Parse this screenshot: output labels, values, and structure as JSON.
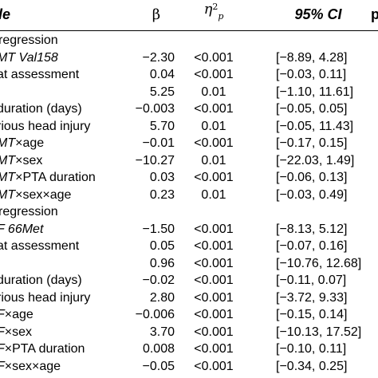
{
  "header": {
    "variable": "le",
    "beta": "β",
    "eta": "η",
    "eta_sup": "2",
    "eta_sub": "p",
    "ci": "95% CI",
    "p": "p"
  },
  "rows": [
    {
      "var": "regression",
      "section": true,
      "beta": "",
      "eta": "",
      "ci": ""
    },
    {
      "var_pre": "",
      "var_ital": "MT Val158",
      "var_post": "",
      "beta": "−2.30",
      "eta": "<0.001",
      "ci": "[−8.89, 4.28]"
    },
    {
      "var_pre": "at assessment",
      "var_ital": "",
      "var_post": "",
      "beta": "0.04",
      "eta": "<0.001",
      "ci": "[−0.03, 0.11]"
    },
    {
      "var_pre": "",
      "var_ital": "",
      "var_post": "",
      "beta": "5.25",
      "eta": "0.01",
      "ci": "[−1.10, 11.61]"
    },
    {
      "var_pre": "duration (days)",
      "var_ital": "",
      "var_post": "",
      "beta": "−0.003",
      "eta": "<0.001",
      "ci": "[−0.05, 0.05]"
    },
    {
      "var_pre": "rious head injury",
      "var_ital": "",
      "var_post": "",
      "beta": "5.70",
      "eta": "0.01",
      "ci": "[−0.05, 11.43]"
    },
    {
      "var_pre": "",
      "var_ital": "MT",
      "var_post": "×age",
      "beta": "−0.01",
      "eta": "<0.001",
      "ci": "[−0.17, 0.15]"
    },
    {
      "var_pre": "",
      "var_ital": "MT",
      "var_post": "×sex",
      "beta": "−10.27",
      "eta": "0.01",
      "ci": "[−22.03, 1.49]"
    },
    {
      "var_pre": "",
      "var_ital": "MT",
      "var_post": "×PTA duration",
      "beta": "0.03",
      "eta": "<0.001",
      "ci": "[−0.06, 0.13]"
    },
    {
      "var_pre": "",
      "var_ital": "MT",
      "var_post": "×sex×age",
      "beta": "0.23",
      "eta": "0.01",
      "ci": "[−0.03, 0.49]"
    },
    {
      "var": "regression",
      "section": true,
      "beta": "",
      "eta": "",
      "ci": ""
    },
    {
      "var_pre": "",
      "var_ital": "F 66Met",
      "var_post": "",
      "beta": "−1.50",
      "eta": "<0.001",
      "ci": "[−8.13, 5.12]"
    },
    {
      "var_pre": "at assessment",
      "var_ital": "",
      "var_post": "",
      "beta": "0.05",
      "eta": "<0.001",
      "ci": "[−0.07, 0.16]"
    },
    {
      "var_pre": "",
      "var_ital": "",
      "var_post": "",
      "beta": "0.96",
      "eta": "<0.001",
      "ci": "[−10.76, 12.68]"
    },
    {
      "var_pre": "duration (days)",
      "var_ital": "",
      "var_post": "",
      "beta": "−0.02",
      "eta": "<0.001",
      "ci": "[−0.11, 0.07]"
    },
    {
      "var_pre": "rious head injury",
      "var_ital": "",
      "var_post": "",
      "beta": "2.80",
      "eta": "<0.001",
      "ci": "[−3.72, 9.33]"
    },
    {
      "var_pre": "",
      "var_ital": "F",
      "var_post": "×age",
      "beta": "−0.006",
      "eta": "<0.001",
      "ci": "[−0.15, 0.14]"
    },
    {
      "var_pre": "",
      "var_ital": "F",
      "var_post": "×sex",
      "beta": "3.70",
      "eta": "<0.001",
      "ci": "[−10.13, 17.52]"
    },
    {
      "var_pre": "",
      "var_ital": "F",
      "var_post": "×PTA duration",
      "beta": "0.008",
      "eta": "<0.001",
      "ci": "[−0.10, 0.11]"
    },
    {
      "var_pre": "",
      "var_ital": "F",
      "var_post": "×sex×age",
      "beta": "−0.05",
      "eta": "<0.001",
      "ci": "[−0.34, 0.25]"
    }
  ]
}
